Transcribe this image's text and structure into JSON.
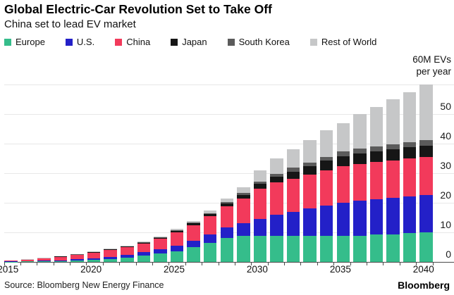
{
  "header": {
    "title": "Global Electric-Car Revolution Set to Take Off",
    "subtitle": "China set to lead EV market"
  },
  "footer": {
    "source": "Source: Bloomberg New Energy Finance",
    "brand": "Bloomberg"
  },
  "chart_data": {
    "type": "bar",
    "stacked": true,
    "title": "Global Electric-Car Revolution Set to Take Off",
    "subtitle": "China set to lead EV market",
    "xlabel": "",
    "ylabel_lines": [
      "60M EVs",
      "per year"
    ],
    "ylim": [
      0,
      60
    ],
    "y_ticks": [
      0,
      10,
      20,
      30,
      40,
      50
    ],
    "grid": true,
    "legend_position": "top",
    "x": [
      2015,
      2016,
      2017,
      2018,
      2019,
      2020,
      2021,
      2022,
      2023,
      2024,
      2025,
      2026,
      2027,
      2028,
      2029,
      2030,
      2031,
      2032,
      2033,
      2034,
      2035,
      2036,
      2037,
      2038,
      2039,
      2040
    ],
    "x_tick_labels": [
      "2015",
      "2020",
      "2025",
      "2030",
      "2035",
      "2040"
    ],
    "series": [
      {
        "name": "Europe",
        "color": "#35bd8b",
        "values": [
          0.1,
          0.15,
          0.2,
          0.3,
          0.45,
          0.7,
          1.0,
          1.5,
          2.2,
          2.9,
          3.6,
          5.0,
          6.5,
          8.2,
          8.7,
          8.7,
          8.8,
          8.8,
          8.8,
          8.7,
          8.7,
          8.9,
          9.2,
          9.4,
          9.7,
          10.0
        ]
      },
      {
        "name": "U.S.",
        "color": "#2320c8",
        "values": [
          0.12,
          0.16,
          0.2,
          0.3,
          0.4,
          0.55,
          0.75,
          0.95,
          1.2,
          1.5,
          1.8,
          2.2,
          2.8,
          3.4,
          4.5,
          5.9,
          7.2,
          8.2,
          9.2,
          10.4,
          11.4,
          11.8,
          12.0,
          12.3,
          12.5,
          12.7
        ]
      },
      {
        "name": "China",
        "color": "#f23a5b",
        "values": [
          0.2,
          0.45,
          0.8,
          1.15,
          1.5,
          1.9,
          2.2,
          2.5,
          2.8,
          3.4,
          4.6,
          5.3,
          6.1,
          7.2,
          8.3,
          10.2,
          10.8,
          11.2,
          11.6,
          11.9,
          12.2,
          12.4,
          12.5,
          12.6,
          12.7,
          12.8
        ]
      },
      {
        "name": "Japan",
        "color": "#161616",
        "values": [
          0.05,
          0.06,
          0.08,
          0.1,
          0.15,
          0.2,
          0.25,
          0.3,
          0.35,
          0.4,
          0.5,
          0.6,
          0.8,
          1.0,
          1.2,
          1.6,
          2.0,
          2.4,
          2.8,
          3.2,
          3.5,
          3.6,
          3.7,
          3.8,
          3.85,
          3.9
        ]
      },
      {
        "name": "South Korea",
        "color": "#5b5b5b",
        "values": [
          0.01,
          0.01,
          0.02,
          0.03,
          0.04,
          0.05,
          0.06,
          0.07,
          0.08,
          0.1,
          0.15,
          0.2,
          0.3,
          0.4,
          0.6,
          0.8,
          1.0,
          1.2,
          1.3,
          1.4,
          1.5,
          1.55,
          1.6,
          1.65,
          1.7,
          1.7
        ]
      },
      {
        "name": "Rest of World",
        "color": "#c6c7c8",
        "values": [
          0.07,
          0.07,
          0.1,
          0.12,
          0.16,
          0.2,
          0.24,
          0.28,
          0.32,
          0.4,
          0.45,
          0.5,
          0.9,
          1.2,
          2.0,
          3.8,
          5.2,
          6.4,
          7.6,
          8.9,
          9.7,
          11.75,
          13.5,
          15.25,
          17.05,
          18.9
        ]
      }
    ]
  }
}
